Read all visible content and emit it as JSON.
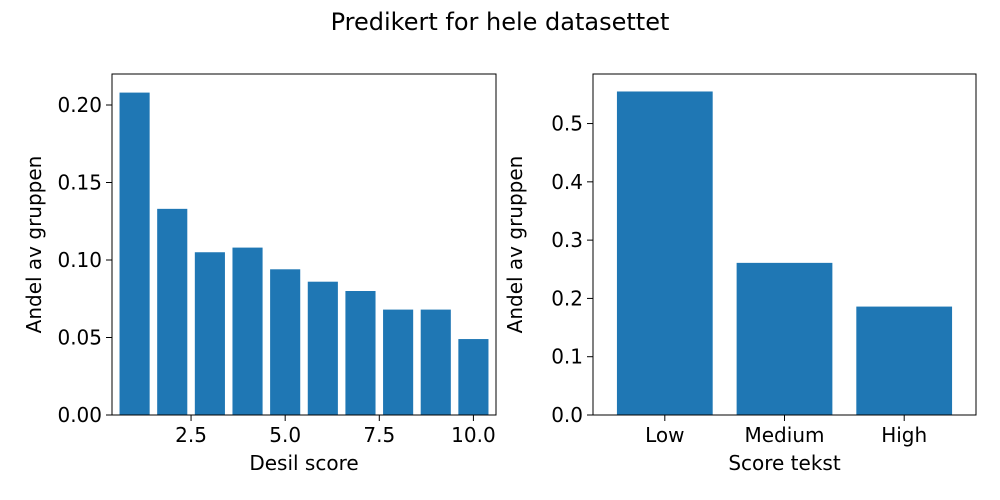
{
  "figure": {
    "title": "Predikert for hele datasettet"
  },
  "chart_data": [
    {
      "type": "bar",
      "xlabel": "Desil score",
      "ylabel": "Andel av gruppen",
      "x": [
        1,
        2,
        3,
        4,
        5,
        6,
        7,
        8,
        9,
        10
      ],
      "values": [
        0.208,
        0.133,
        0.105,
        0.108,
        0.094,
        0.086,
        0.08,
        0.068,
        0.068,
        0.049
      ],
      "xlim": [
        0.4,
        10.6
      ],
      "ylim": [
        0,
        0.22
      ],
      "xticks": [
        2.5,
        5.0,
        7.5,
        10.0
      ],
      "xtick_labels": [
        "2.5",
        "5.0",
        "7.5",
        "10.0"
      ],
      "yticks": [
        0.0,
        0.05,
        0.1,
        0.15,
        0.2
      ],
      "ytick_labels": [
        "0.00",
        "0.05",
        "0.10",
        "0.15",
        "0.20"
      ],
      "bar_width": 0.8,
      "color": "#1f77b4",
      "grid": false
    },
    {
      "type": "bar",
      "xlabel": "Score tekst",
      "ylabel": "Andel av gruppen",
      "categories": [
        "Low",
        "Medium",
        "High"
      ],
      "values": [
        0.555,
        0.261,
        0.186
      ],
      "ylim": [
        0,
        0.585
      ],
      "yticks": [
        0.0,
        0.1,
        0.2,
        0.3,
        0.4,
        0.5
      ],
      "ytick_labels": [
        "0.0",
        "0.1",
        "0.2",
        "0.3",
        "0.4",
        "0.5"
      ],
      "bar_width": 0.8,
      "color": "#1f77b4",
      "grid": false
    }
  ]
}
